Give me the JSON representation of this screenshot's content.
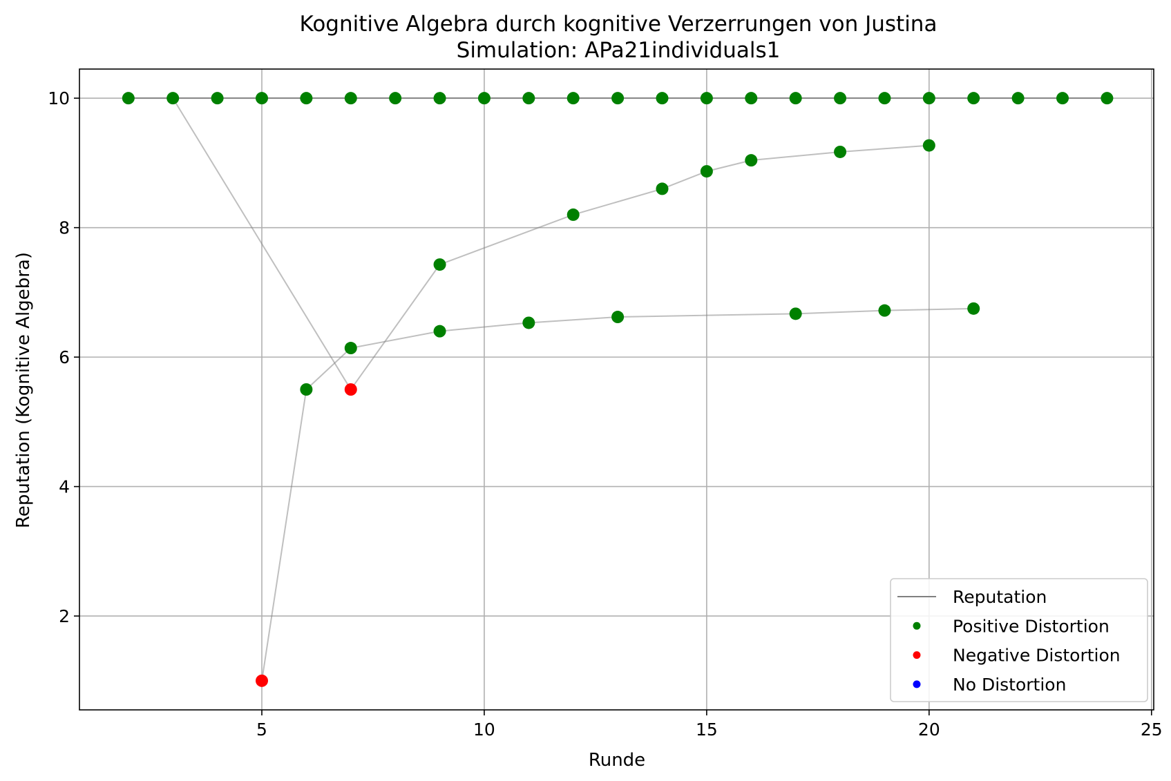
{
  "chart_data": {
    "type": "scatter",
    "title": "Kognitive Algebra durch kognitive Verzerrungen von Justina",
    "subtitle": "Simulation: APa21individuals1",
    "xlabel": "Runde",
    "ylabel": "Reputation (Kognitive Algebra)",
    "xlim": [
      0.9,
      25.05
    ],
    "ylim": [
      0.55,
      10.45
    ],
    "xticks": [
      5,
      10,
      15,
      20,
      25
    ],
    "yticks": [
      2,
      4,
      6,
      8,
      10
    ],
    "grid": true,
    "legend_position": "lower right",
    "legend": [
      {
        "label": "Reputation",
        "kind": "line",
        "color": "#808080"
      },
      {
        "label": "Positive Distortion",
        "kind": "marker",
        "color": "#008000"
      },
      {
        "label": "Negative Distortion",
        "kind": "marker",
        "color": "#ff0000"
      },
      {
        "label": "No Distortion",
        "kind": "marker",
        "color": "#0000ff"
      }
    ],
    "colors": {
      "positive": "#008000",
      "negative": "#ff0000",
      "none": "#0000ff",
      "line": "#808080"
    },
    "lines": [
      {
        "x": [
          2,
          3,
          4,
          5,
          6,
          7,
          8,
          9,
          10,
          11,
          12,
          13,
          14,
          15,
          16,
          17,
          18,
          19,
          20,
          21,
          22,
          23,
          24
        ],
        "y": [
          10,
          10,
          10,
          10,
          10,
          10,
          10,
          10,
          10,
          10,
          10,
          10,
          10,
          10,
          10,
          10,
          10,
          10,
          10,
          10,
          10,
          10,
          10
        ],
        "strong": true
      },
      {
        "x": [
          3,
          7,
          9,
          12,
          14,
          15,
          16,
          18,
          20
        ],
        "y": [
          10,
          5.5,
          7.43,
          8.2,
          8.6,
          8.87,
          9.04,
          9.17,
          9.27
        ],
        "strong": false
      },
      {
        "x": [
          5,
          6,
          7,
          9,
          11,
          13,
          17,
          19,
          21
        ],
        "y": [
          1.0,
          5.5,
          6.14,
          6.4,
          6.53,
          6.62,
          6.67,
          6.72,
          6.75
        ],
        "strong": false
      }
    ],
    "points": [
      {
        "x": 2,
        "y": 10,
        "type": "positive"
      },
      {
        "x": 3,
        "y": 10,
        "type": "positive"
      },
      {
        "x": 4,
        "y": 10,
        "type": "positive"
      },
      {
        "x": 5,
        "y": 10,
        "type": "positive"
      },
      {
        "x": 6,
        "y": 10,
        "type": "positive"
      },
      {
        "x": 7,
        "y": 10,
        "type": "positive"
      },
      {
        "x": 8,
        "y": 10,
        "type": "positive"
      },
      {
        "x": 9,
        "y": 10,
        "type": "positive"
      },
      {
        "x": 10,
        "y": 10,
        "type": "positive"
      },
      {
        "x": 11,
        "y": 10,
        "type": "positive"
      },
      {
        "x": 12,
        "y": 10,
        "type": "positive"
      },
      {
        "x": 13,
        "y": 10,
        "type": "positive"
      },
      {
        "x": 14,
        "y": 10,
        "type": "positive"
      },
      {
        "x": 15,
        "y": 10,
        "type": "positive"
      },
      {
        "x": 16,
        "y": 10,
        "type": "positive"
      },
      {
        "x": 17,
        "y": 10,
        "type": "positive"
      },
      {
        "x": 18,
        "y": 10,
        "type": "positive"
      },
      {
        "x": 19,
        "y": 10,
        "type": "positive"
      },
      {
        "x": 20,
        "y": 10,
        "type": "positive"
      },
      {
        "x": 21,
        "y": 10,
        "type": "positive"
      },
      {
        "x": 22,
        "y": 10,
        "type": "positive"
      },
      {
        "x": 23,
        "y": 10,
        "type": "positive"
      },
      {
        "x": 24,
        "y": 10,
        "type": "positive"
      },
      {
        "x": 7,
        "y": 5.5,
        "type": "negative"
      },
      {
        "x": 9,
        "y": 7.43,
        "type": "positive"
      },
      {
        "x": 12,
        "y": 8.2,
        "type": "positive"
      },
      {
        "x": 14,
        "y": 8.6,
        "type": "positive"
      },
      {
        "x": 15,
        "y": 8.87,
        "type": "positive"
      },
      {
        "x": 16,
        "y": 9.04,
        "type": "positive"
      },
      {
        "x": 18,
        "y": 9.17,
        "type": "positive"
      },
      {
        "x": 20,
        "y": 9.27,
        "type": "positive"
      },
      {
        "x": 5,
        "y": 1.0,
        "type": "negative"
      },
      {
        "x": 6,
        "y": 5.5,
        "type": "positive"
      },
      {
        "x": 7,
        "y": 6.14,
        "type": "positive"
      },
      {
        "x": 9,
        "y": 6.4,
        "type": "positive"
      },
      {
        "x": 11,
        "y": 6.53,
        "type": "positive"
      },
      {
        "x": 13,
        "y": 6.62,
        "type": "positive"
      },
      {
        "x": 17,
        "y": 6.67,
        "type": "positive"
      },
      {
        "x": 19,
        "y": 6.72,
        "type": "positive"
      },
      {
        "x": 21,
        "y": 6.75,
        "type": "positive"
      }
    ]
  }
}
